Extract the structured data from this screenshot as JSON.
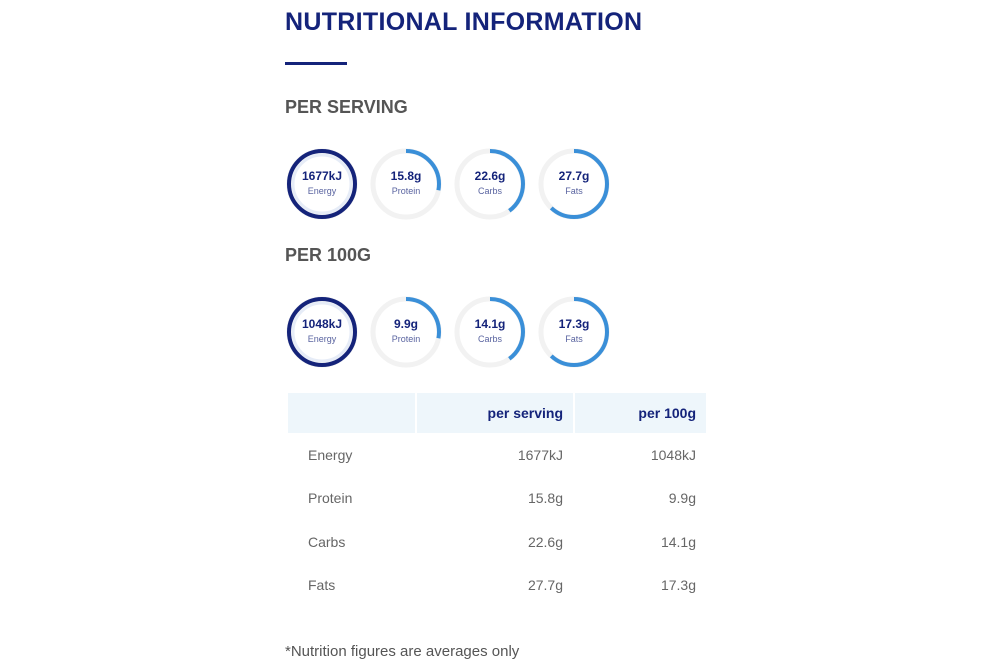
{
  "title": "NUTRITIONAL INFORMATION",
  "per_serving": {
    "heading": "PER SERVING",
    "items": [
      {
        "value": "1677kJ",
        "label": "Energy",
        "fill": 1.0
      },
      {
        "value": "15.8g",
        "label": "Protein",
        "fill": 0.28
      },
      {
        "value": "22.6g",
        "label": "Carbs",
        "fill": 0.4
      },
      {
        "value": "27.7g",
        "label": "Fats",
        "fill": 0.62
      }
    ]
  },
  "per_100g": {
    "heading": "PER 100G",
    "items": [
      {
        "value": "1048kJ",
        "label": "Energy",
        "fill": 1.0
      },
      {
        "value": "9.9g",
        "label": "Protein",
        "fill": 0.28
      },
      {
        "value": "14.1g",
        "label": "Carbs",
        "fill": 0.4
      },
      {
        "value": "17.3g",
        "label": "Fats",
        "fill": 0.62
      }
    ]
  },
  "table": {
    "headers": [
      "",
      "per serving",
      "per 100g"
    ],
    "rows": [
      [
        "Energy",
        "1677kJ",
        "1048kJ"
      ],
      [
        "Protein",
        "15.8g",
        "9.9g"
      ],
      [
        "Carbs",
        "22.6g",
        "14.1g"
      ],
      [
        "Fats",
        "27.7g",
        "17.3g"
      ]
    ]
  },
  "note": "*Nutrition figures are averages only",
  "colors": {
    "navy": "#14237a",
    "blue": "#3a8fd8",
    "track": "#f2f2f2"
  }
}
